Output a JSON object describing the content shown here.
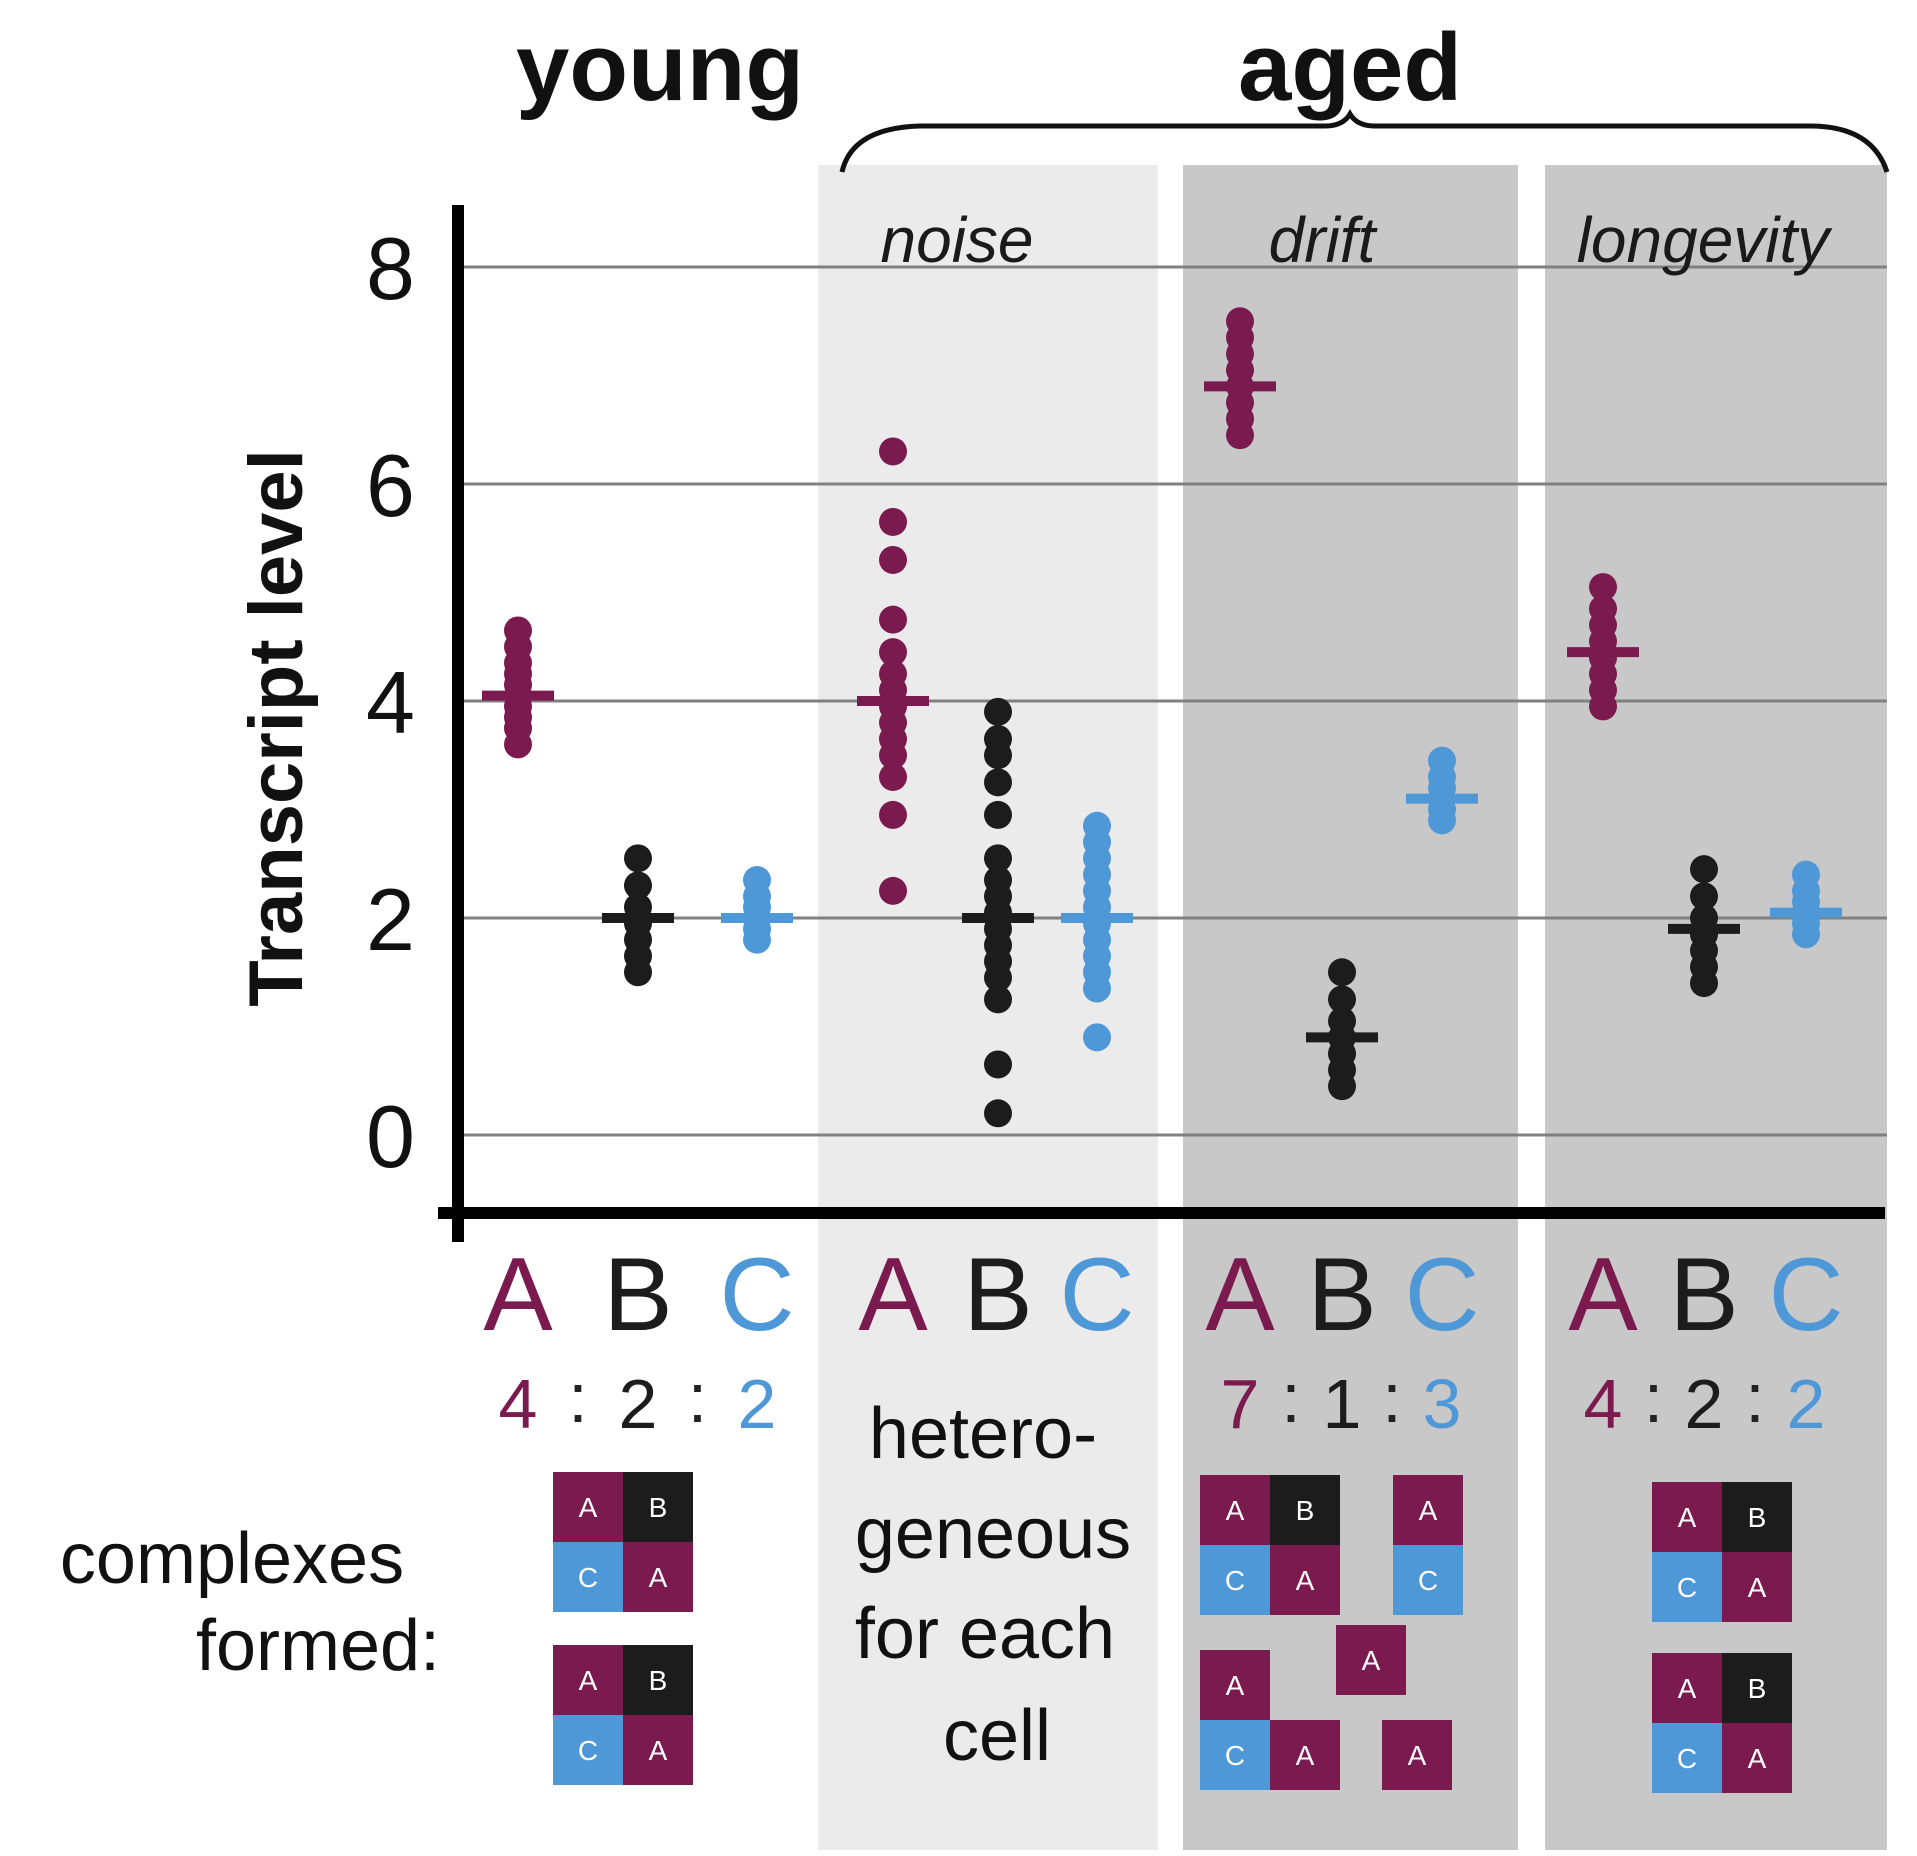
{
  "colors": {
    "A": "#7b1a4e",
    "B": "#1c1c1c",
    "C": "#4f98d8",
    "colon": "#222222"
  },
  "labels": {
    "young": "young",
    "aged": "aged",
    "y_axis_title": "Transcript level",
    "complexes_line1": "complexes",
    "complexes_line2": "formed:",
    "hetero_lines": [
      "hetero-",
      "geneous",
      "for each",
      "cell"
    ]
  },
  "panels": [
    {
      "name": "young",
      "label": "",
      "background": "#ffffff",
      "genes": [
        "A",
        "B",
        "C"
      ],
      "ratio": [
        "4",
        "2",
        "2"
      ],
      "complexes": [
        [
          "A",
          "B",
          "C",
          "A"
        ],
        [
          "A",
          "B",
          "C",
          "A"
        ]
      ]
    },
    {
      "name": "noise",
      "label": "noise",
      "background": "#ebebeb",
      "genes": [
        "A",
        "B",
        "C"
      ],
      "ratio": [],
      "complexes": []
    },
    {
      "name": "drift",
      "label": "drift",
      "background": "#c8c8c8",
      "genes": [
        "A",
        "B",
        "C"
      ],
      "ratio": [
        "7",
        "1",
        "3"
      ],
      "complexes": [
        [
          "A",
          "B",
          "C",
          "A"
        ],
        [
          "A",
          "C"
        ],
        [
          "A",
          "C"
        ],
        [
          "A"
        ],
        [
          "A"
        ],
        [
          "A"
        ]
      ]
    },
    {
      "name": "longevity",
      "label": "longevity",
      "background": "#c8c8c8",
      "genes": [
        "A",
        "B",
        "C"
      ],
      "ratio": [
        "4",
        "2",
        "2"
      ],
      "complexes": [
        [
          "A",
          "B",
          "C",
          "A"
        ],
        [
          "A",
          "B",
          "C",
          "A"
        ]
      ]
    }
  ],
  "chart_data": {
    "type": "scatter",
    "title": "",
    "ylabel": "Transcript level",
    "ylim": [
      -0.7,
      8.6
    ],
    "yticks": [
      0,
      2,
      4,
      6,
      8
    ],
    "grid": true,
    "groups": [
      {
        "panel": "young",
        "gene": "A",
        "mean": 4.05,
        "values": [
          3.6,
          3.75,
          3.85,
          3.95,
          4.05,
          4.15,
          4.25,
          4.35,
          4.5,
          4.65
        ]
      },
      {
        "panel": "young",
        "gene": "B",
        "mean": 2.0,
        "values": [
          1.5,
          1.65,
          1.8,
          1.95,
          2.1,
          2.3,
          2.55
        ]
      },
      {
        "panel": "young",
        "gene": "C",
        "mean": 2.0,
        "values": [
          1.8,
          1.9,
          2.0,
          2.1,
          2.2,
          2.35
        ]
      },
      {
        "panel": "noise",
        "gene": "A",
        "mean": 4.0,
        "values": [
          2.25,
          2.95,
          3.3,
          3.5,
          3.65,
          3.8,
          3.95,
          4.1,
          4.25,
          4.45,
          4.75,
          5.3,
          5.65,
          6.3
        ]
      },
      {
        "panel": "noise",
        "gene": "B",
        "mean": 2.0,
        "values": [
          0.2,
          0.65,
          1.25,
          1.45,
          1.6,
          1.75,
          1.9,
          2.05,
          2.2,
          2.35,
          2.55,
          2.95,
          3.25,
          3.5,
          3.65,
          3.9
        ]
      },
      {
        "panel": "noise",
        "gene": "C",
        "mean": 2.0,
        "values": [
          0.9,
          1.35,
          1.5,
          1.65,
          1.8,
          1.95,
          2.1,
          2.25,
          2.4,
          2.55,
          2.7,
          2.85
        ]
      },
      {
        "panel": "drift",
        "gene": "A",
        "mean": 6.9,
        "values": [
          6.45,
          6.6,
          6.75,
          6.9,
          7.05,
          7.2,
          7.35,
          7.5
        ]
      },
      {
        "panel": "drift",
        "gene": "B",
        "mean": 0.9,
        "values": [
          0.45,
          0.6,
          0.75,
          0.9,
          1.05,
          1.25,
          1.5
        ]
      },
      {
        "panel": "drift",
        "gene": "C",
        "mean": 3.1,
        "values": [
          2.9,
          3.0,
          3.1,
          3.2,
          3.3,
          3.45
        ]
      },
      {
        "panel": "longevity",
        "gene": "A",
        "mean": 4.45,
        "values": [
          3.95,
          4.1,
          4.25,
          4.4,
          4.55,
          4.7,
          4.85,
          5.05
        ]
      },
      {
        "panel": "longevity",
        "gene": "B",
        "mean": 1.9,
        "values": [
          1.4,
          1.55,
          1.7,
          1.85,
          2.0,
          2.2,
          2.45
        ]
      },
      {
        "panel": "longevity",
        "gene": "C",
        "mean": 2.05,
        "values": [
          1.85,
          1.95,
          2.05,
          2.15,
          2.25,
          2.4
        ]
      }
    ]
  }
}
